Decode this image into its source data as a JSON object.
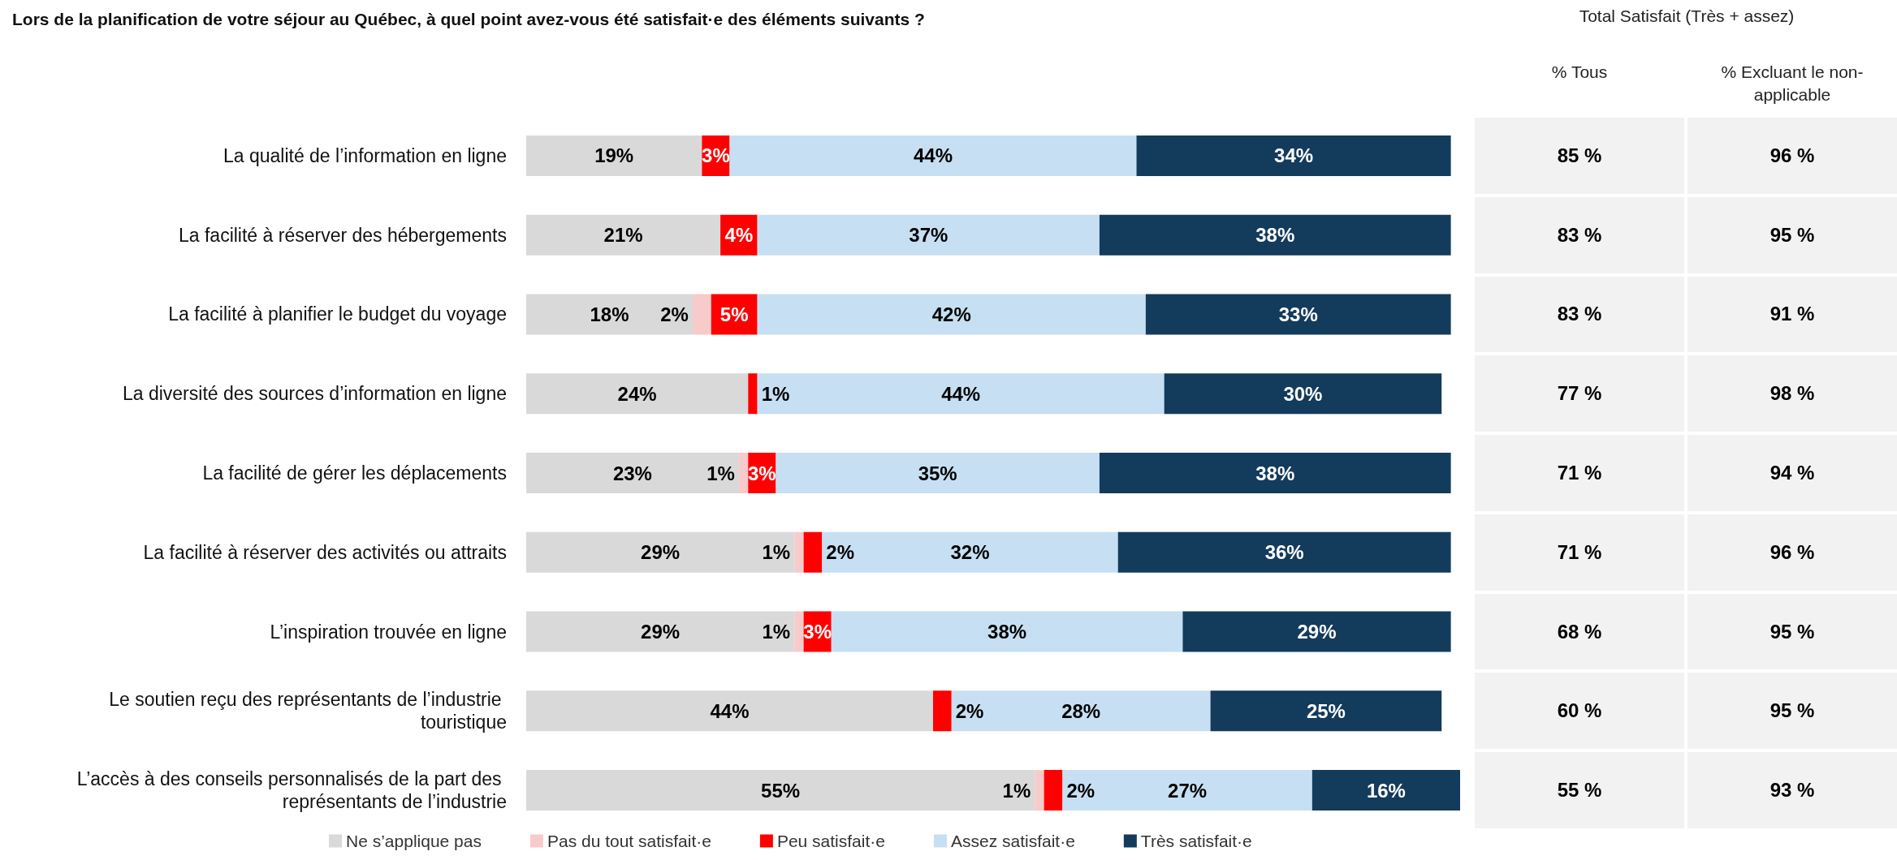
{
  "chart_data": [
    {
      "type": "bar",
      "orientation": "horizontal",
      "stacked": true,
      "legend": "bottom",
      "title": "Lors de la planification de votre séjour au Québec, à quel point avez-vous été satisfait·e des éléments suivants ?",
      "categories": [
        "La qualité de l’information en ligne",
        "La facilité à réserver des hébergements",
        "La facilité à planifier le budget du voyage",
        "La diversité des sources d’information en ligne",
        "La facilité de gérer les déplacements",
        "La facilité à réserver des activités ou attraits",
        "L’inspiration trouvée en ligne",
        "Le soutien reçu des représentants de l’industrie touristique",
        "L’accès à des conseils personnalisés de la part des représentants de l’industrie"
      ],
      "series": [
        {
          "name": "Ne s’applique pas",
          "color": "#d9d9d9",
          "values": [
            19,
            21,
            18,
            24,
            23,
            29,
            29,
            44,
            55
          ],
          "value_labels": [
            "19%",
            "21%",
            "18%",
            "24%",
            "23%",
            "29%",
            "29%",
            "44%",
            "55%"
          ]
        },
        {
          "name": "Pas du tout satisfait·e",
          "color": "#f8cbcb",
          "values": [
            null,
            null,
            2,
            null,
            1,
            1,
            1,
            null,
            1
          ],
          "value_labels": [
            null,
            null,
            "2%",
            null,
            "1%",
            "1%",
            "1%",
            null,
            "1%"
          ]
        },
        {
          "name": "Peu satisfait·e",
          "color": "#ff0000",
          "values": [
            3,
            4,
            5,
            1,
            3,
            2,
            3,
            2,
            2
          ],
          "value_labels": [
            "3%",
            "4%",
            "5%",
            "1%",
            "3%",
            "2%",
            "3%",
            "2%",
            "2%"
          ]
        },
        {
          "name": "Assez satisfait·e",
          "color": "#c6dff2",
          "values": [
            44,
            37,
            42,
            44,
            35,
            32,
            38,
            28,
            27
          ],
          "value_labels": [
            "44%",
            "37%",
            "42%",
            "44%",
            "35%",
            "32%",
            "38%",
            "28%",
            "27%"
          ]
        },
        {
          "name": "Très satisfait·e",
          "color": "#133b5c",
          "values": [
            34,
            38,
            33,
            30,
            38,
            36,
            29,
            25,
            16
          ],
          "value_labels": [
            "34%",
            "38%",
            "33%",
            "30%",
            "38%",
            "36%",
            "29%",
            "25%",
            "16%"
          ]
        }
      ]
    },
    {
      "type": "other",
      "title": "Total Satisfait (Très + assez)",
      "categories": [
        "% Tous",
        "% Excluant le non-applicable"
      ],
      "annotations": [
        "85 %",
        "96 %",
        "83 %",
        "95 %",
        "83 %",
        "91 %",
        "77 %",
        "98 %",
        "71 %",
        "94 %",
        "71 %",
        "96 %",
        "68 %",
        "95 %",
        "60 %",
        "95 %",
        "55 %",
        "93 %"
      ]
    }
  ]
}
